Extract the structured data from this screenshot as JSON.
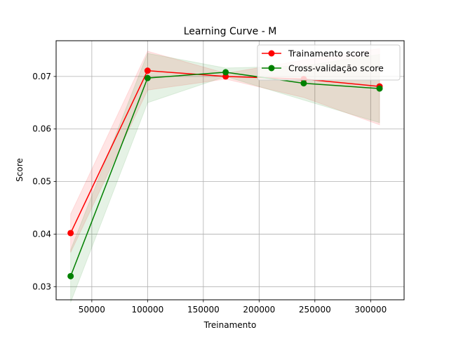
{
  "chart_data": {
    "type": "line",
    "title": "Learning Curve - M",
    "xlabel": "Treinamento",
    "ylabel": "Score",
    "xlim": [
      18000,
      330000
    ],
    "ylim": [
      0.0275,
      0.0768
    ],
    "grid": true,
    "legend_position": "top-right",
    "x_ticks": [
      50000,
      100000,
      150000,
      200000,
      250000,
      300000
    ],
    "x_tick_labels": [
      "50000",
      "100000",
      "150000",
      "200000",
      "250000",
      "300000"
    ],
    "y_ticks": [
      0.03,
      0.04,
      0.05,
      0.06,
      0.07
    ],
    "y_tick_labels": [
      "0.03",
      "0.04",
      "0.05",
      "0.06",
      "0.07"
    ],
    "x": [
      31000,
      100000,
      170000,
      240000,
      308000
    ],
    "series": [
      {
        "name": "Trainamento score",
        "color": "#ff0000",
        "values": [
          0.0402,
          0.0711,
          0.07,
          0.0695,
          0.0681
        ],
        "band_low": [
          0.0365,
          0.0674,
          0.0695,
          0.066,
          0.0608
        ],
        "band_high": [
          0.0438,
          0.0748,
          0.0706,
          0.0731,
          0.0753
        ],
        "band_color": "#ff0000",
        "band_opacity": 0.1
      },
      {
        "name": "Cross-validação score",
        "color": "#008000",
        "values": [
          0.032,
          0.0697,
          0.0708,
          0.0687,
          0.0677
        ],
        "band_low": [
          0.027,
          0.065,
          0.07,
          0.0655,
          0.0612
        ],
        "band_high": [
          0.037,
          0.0744,
          0.0716,
          0.072,
          0.0742
        ],
        "band_color": "#008000",
        "band_opacity": 0.1
      }
    ]
  }
}
